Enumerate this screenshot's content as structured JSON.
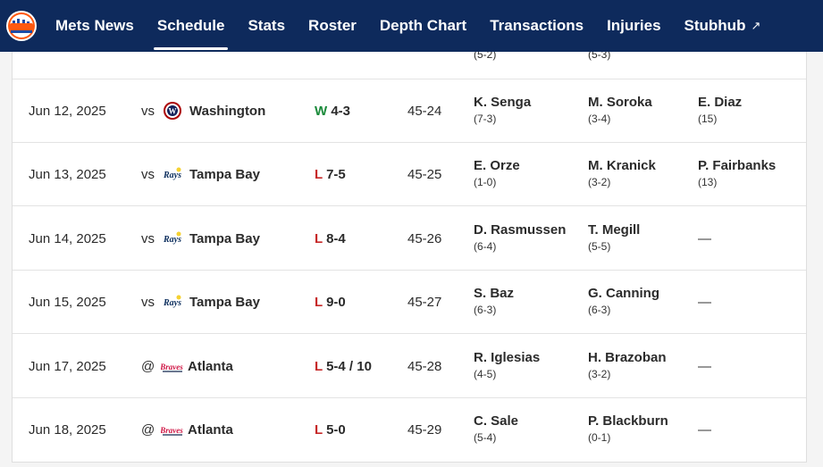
{
  "nav": {
    "items": [
      "Mets News",
      "Schedule",
      "Stats",
      "Roster",
      "Depth Chart",
      "Transactions",
      "Injuries",
      "Stubhub"
    ],
    "external_arrow": "↗",
    "logo_text": "Mets"
  },
  "partial_row": {
    "win_record": "(5-2)",
    "loss_record": "(5-3)"
  },
  "games": [
    {
      "date": "Jun 12, 2025",
      "vs": "vs",
      "opponent": "Washington",
      "wl": "W",
      "score": "4-3",
      "record": "45-24",
      "win_pitcher": "K. Senga",
      "win_rec": "(7-3)",
      "loss_pitcher": "M. Soroka",
      "loss_rec": "(3-4)",
      "save_pitcher": "E. Diaz",
      "save_rec": "(15)"
    },
    {
      "date": "Jun 13, 2025",
      "vs": "vs",
      "opponent": "Tampa Bay",
      "wl": "L",
      "score": "7-5",
      "record": "45-25",
      "win_pitcher": "E. Orze",
      "win_rec": "(1-0)",
      "loss_pitcher": "M. Kranick",
      "loss_rec": "(3-2)",
      "save_pitcher": "P. Fairbanks",
      "save_rec": "(13)"
    },
    {
      "date": "Jun 14, 2025",
      "vs": "vs",
      "opponent": "Tampa Bay",
      "wl": "L",
      "score": "8-4",
      "record": "45-26",
      "win_pitcher": "D. Rasmussen",
      "win_rec": "(6-4)",
      "loss_pitcher": "T. Megill",
      "loss_rec": "(5-5)",
      "save_pitcher": "",
      "save_rec": "",
      "save_dash": "—"
    },
    {
      "date": "Jun 15, 2025",
      "vs": "vs",
      "opponent": "Tampa Bay",
      "wl": "L",
      "score": "9-0",
      "record": "45-27",
      "win_pitcher": "S. Baz",
      "win_rec": "(6-3)",
      "loss_pitcher": "G. Canning",
      "loss_rec": "(6-3)",
      "save_pitcher": "",
      "save_rec": "",
      "save_dash": "—"
    },
    {
      "date": "Jun 17, 2025",
      "vs": "@",
      "opponent": "Atlanta",
      "wl": "L",
      "score": "5-4 / 10",
      "record": "45-28",
      "win_pitcher": "R. Iglesias",
      "win_rec": "(4-5)",
      "loss_pitcher": "H. Brazoban",
      "loss_rec": "(3-2)",
      "save_pitcher": "",
      "save_rec": "",
      "save_dash": "—"
    },
    {
      "date": "Jun 18, 2025",
      "vs": "@",
      "opponent": "Atlanta",
      "wl": "L",
      "score": "5-0",
      "record": "45-29",
      "win_pitcher": "C. Sale",
      "win_rec": "(5-4)",
      "loss_pitcher": "P. Blackburn",
      "loss_rec": "(0-1)",
      "save_pitcher": "",
      "save_rec": "",
      "save_dash": "—"
    }
  ],
  "team_logos": {
    "Washington": "nationals-logo-icon",
    "Tampa Bay": "rays-logo-icon",
    "Atlanta": "braves-logo-icon"
  },
  "colors": {
    "nav_bg": "#0e2a5c",
    "win": "#1a8a3a",
    "loss": "#c62828",
    "mets_orange": "#ff5910"
  }
}
